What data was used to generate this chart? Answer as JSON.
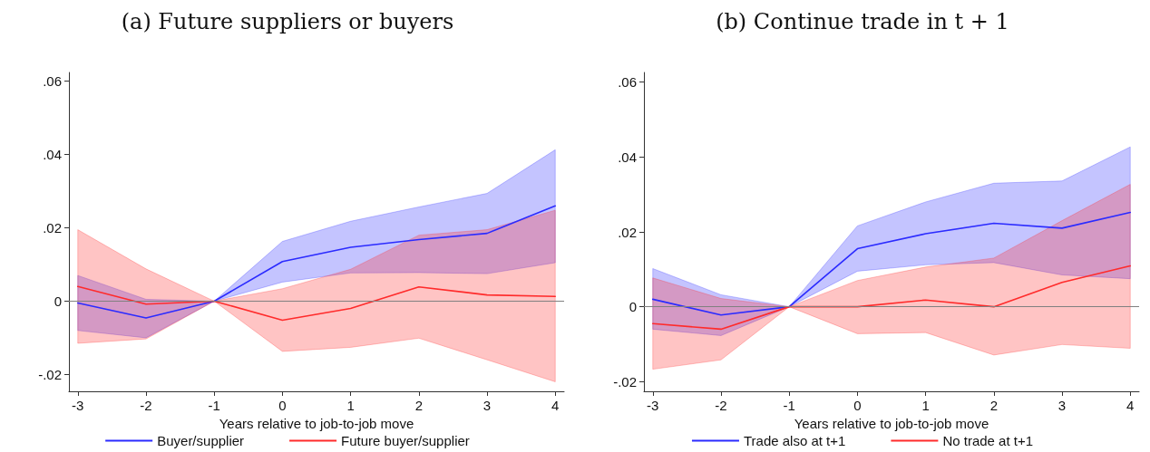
{
  "chart_data": [
    {
      "type": "line",
      "title": "(a) Future suppliers or buyers",
      "xlabel": "Years relative to job-to-job move",
      "x": [
        -3,
        -2,
        -1,
        0,
        1,
        2,
        3,
        4
      ],
      "xlim": [
        -3.13,
        4.13
      ],
      "xticks": [
        -3,
        -2,
        -1,
        0,
        1,
        2,
        3,
        4
      ],
      "ylim": [
        -0.0246,
        0.0624
      ],
      "yticks": [
        {
          "value": -0.02,
          "label": "-.02"
        },
        0,
        {
          "value": 0.02,
          "label": ".02"
        },
        {
          "value": 0.04,
          "label": ".04"
        },
        {
          "value": 0.06,
          "label": ".06"
        }
      ],
      "grid": false,
      "legend": "bottom",
      "marker": "none",
      "line_style": "solid",
      "ref_lines": [
        {
          "axis": "y",
          "value": 0,
          "label": null,
          "color": "#808080"
        }
      ],
      "series": [
        {
          "name": "Buyer/supplier",
          "color": "#2b2bff",
          "values": [
            -0.0005,
            -0.0046,
            0,
            0.0108,
            0.0147,
            0.0168,
            0.0185,
            0.026
          ],
          "lower": [
            -0.008,
            -0.01,
            0,
            0.0052,
            0.0077,
            0.0078,
            0.0075,
            0.0105
          ],
          "upper": [
            0.007,
            0.0005,
            0,
            0.0163,
            0.0218,
            0.0257,
            0.0294,
            0.0413
          ]
        },
        {
          "name": "Future buyer/supplier",
          "color": "#ff2b2b",
          "values": [
            0.004,
            -0.0008,
            0,
            -0.0052,
            -0.002,
            0.0039,
            0.0017,
            0.0013
          ],
          "lower": [
            -0.0115,
            -0.0103,
            0,
            -0.0137,
            -0.0126,
            -0.0101,
            -0.016,
            -0.022
          ],
          "upper": [
            0.0195,
            0.0088,
            0,
            0.0034,
            0.0087,
            0.018,
            0.0195,
            0.0248
          ]
        }
      ]
    },
    {
      "type": "line",
      "title": "(b) Continue trade in t + 1",
      "xlabel": "Years relative to job-to-job move",
      "x": [
        -3,
        -2,
        -1,
        0,
        1,
        2,
        3,
        4
      ],
      "xlim": [
        -3.13,
        4.13
      ],
      "xticks": [
        -3,
        -2,
        -1,
        0,
        1,
        2,
        3,
        4
      ],
      "ylim": [
        -0.0226,
        0.0626
      ],
      "yticks": [
        {
          "value": -0.02,
          "label": "-.02"
        },
        0,
        {
          "value": 0.02,
          "label": ".02"
        },
        {
          "value": 0.04,
          "label": ".04"
        },
        {
          "value": 0.06,
          "label": ".06"
        }
      ],
      "grid": false,
      "legend": "bottom",
      "marker": "none",
      "line_style": "solid",
      "ref_lines": [
        {
          "axis": "y",
          "value": 0,
          "label": null,
          "color": "#808080"
        }
      ],
      "series": [
        {
          "name": "Trade also at t+1",
          "color": "#2b2bff",
          "values": [
            0.002,
            -0.0022,
            0,
            0.0155,
            0.0195,
            0.0223,
            0.021,
            0.0252
          ],
          "lower": [
            -0.006,
            -0.0077,
            0,
            0.0095,
            0.0112,
            0.0118,
            0.0085,
            0.0075
          ],
          "upper": [
            0.0102,
            0.0032,
            0,
            0.0216,
            0.028,
            0.033,
            0.0336,
            0.0427
          ]
        },
        {
          "name": "No trade at t+1",
          "color": "#ff2b2b",
          "values": [
            -0.0045,
            -0.006,
            0,
            0,
            0.0018,
            0,
            0.0065,
            0.0109
          ],
          "lower": [
            -0.0167,
            -0.0142,
            0,
            -0.0072,
            -0.0069,
            -0.0129,
            -0.0101,
            -0.0111
          ],
          "upper": [
            0.0077,
            0.0022,
            0,
            0.007,
            0.0106,
            0.013,
            0.023,
            0.0327
          ]
        }
      ]
    }
  ]
}
